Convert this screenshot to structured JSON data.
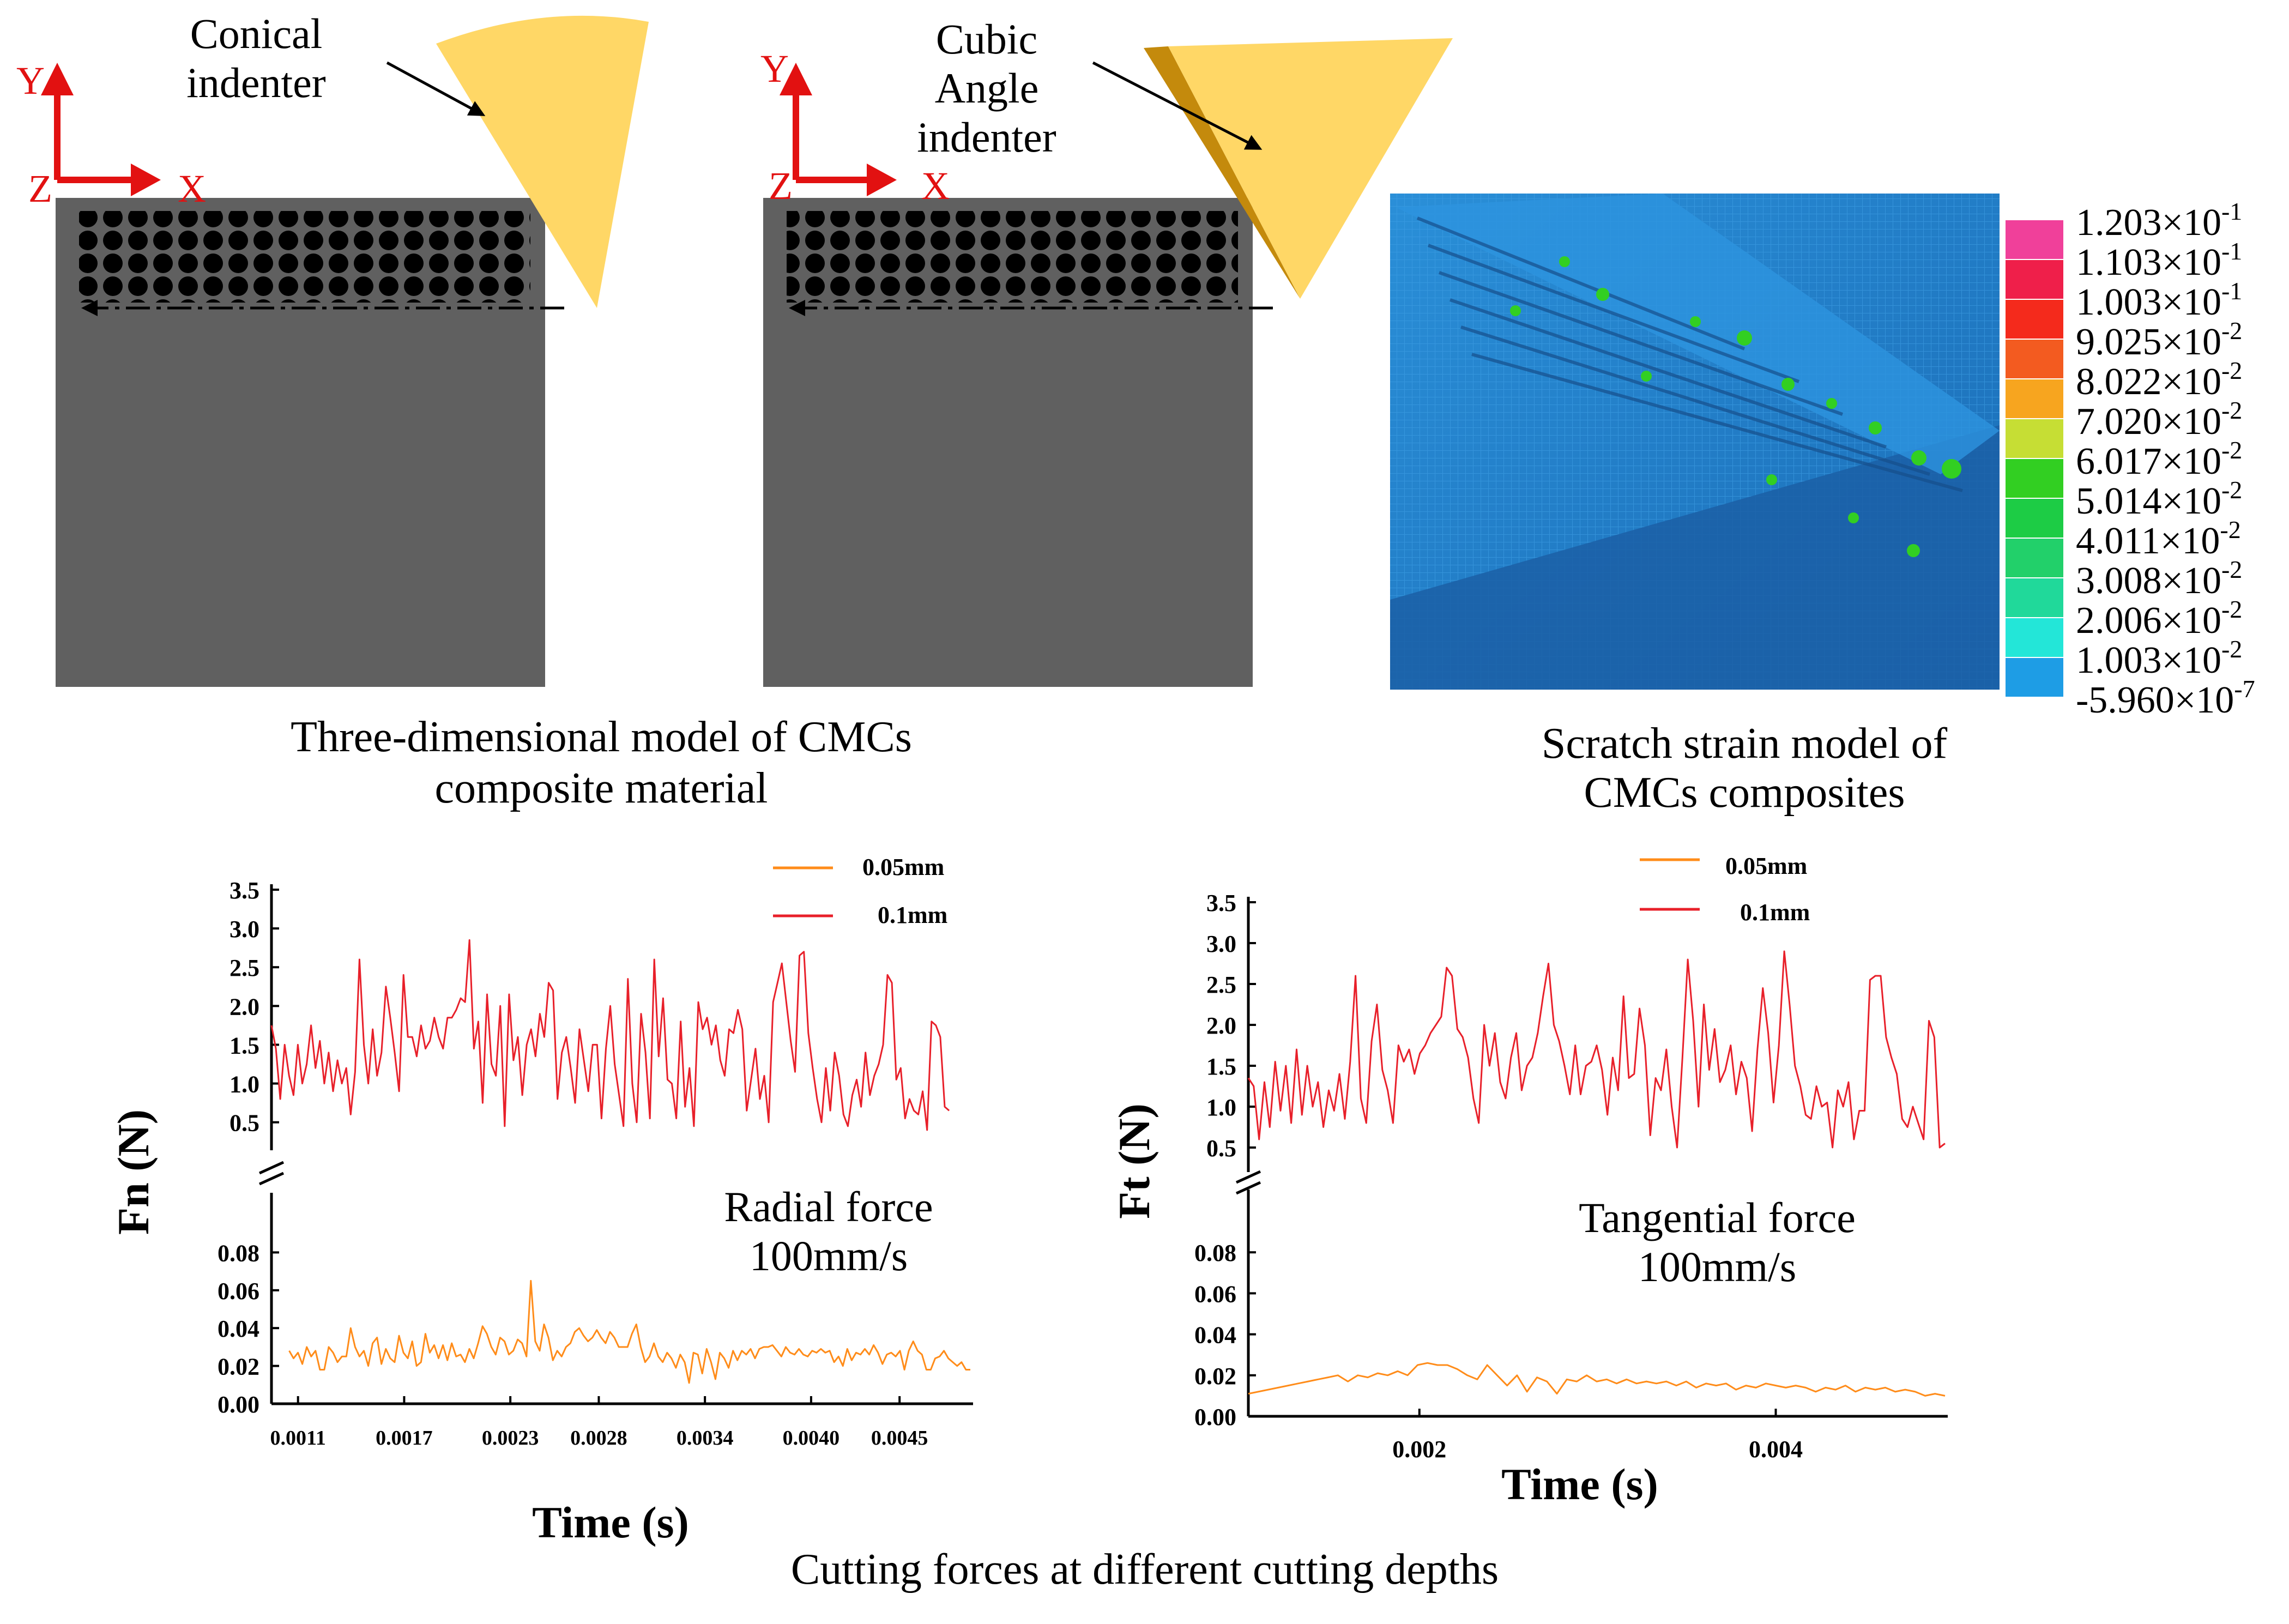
{
  "model_panel_1": {
    "indenter_label_line1": "Conical",
    "indenter_label_line2": "indenter",
    "axis_y": "Y",
    "axis_z": "Z",
    "axis_x": "X"
  },
  "model_panel_2": {
    "indenter_label_line1": "Cubic",
    "indenter_label_line2": "Angle",
    "indenter_label_line3": "indenter",
    "axis_y": "Y",
    "axis_z": "Z",
    "axis_x": "X"
  },
  "caption_model_line1": "Three-dimensional model of CMCs",
  "caption_model_line2": "composite material",
  "caption_strain_line1": "Scratch strain model of",
  "caption_strain_line2": "CMCs composites",
  "colorbar": {
    "labels": [
      {
        "mantissa": "1.203×10",
        "exp": "-1"
      },
      {
        "mantissa": "1.103×10",
        "exp": "-1"
      },
      {
        "mantissa": "1.003×10",
        "exp": "-1"
      },
      {
        "mantissa": "9.025×10",
        "exp": "-2"
      },
      {
        "mantissa": "8.022×10",
        "exp": "-2"
      },
      {
        "mantissa": "7.020×10",
        "exp": "-2"
      },
      {
        "mantissa": "6.017×10",
        "exp": "-2"
      },
      {
        "mantissa": "5.014×10",
        "exp": "-2"
      },
      {
        "mantissa": "4.011×10",
        "exp": "-2"
      },
      {
        "mantissa": "3.008×10",
        "exp": "-2"
      },
      {
        "mantissa": "2.006×10",
        "exp": "-2"
      },
      {
        "mantissa": "1.003×10",
        "exp": "-2"
      },
      {
        "mantissa": "-5.960×10",
        "exp": "-7"
      }
    ],
    "colors": [
      "#f0409a",
      "#ef1f4a",
      "#f42a1c",
      "#f35b20",
      "#f7a51f",
      "#c6de34",
      "#32cf22",
      "#1dcc45",
      "#22d06a",
      "#20d99a",
      "#23e6d8",
      "#1e9de5"
    ]
  },
  "colors": {
    "orange_series": "#ff8c1a",
    "red_series": "#e8202a",
    "indenter": "#ffd766",
    "indenter_dark": "#c48a0c",
    "block": "#606060",
    "axis_red": "#e21111"
  },
  "chart_data": [
    {
      "type": "line",
      "title": "Radial force 100mm/s",
      "annotation_line1": "Radial force",
      "annotation_line2": "100mm/s",
      "xlabel": "Time (s)",
      "ylabel": "Fn (N)",
      "x_ticks": [
        "0.0011",
        "0.0017",
        "0.0023",
        "0.0028",
        "0.0034",
        "0.0040",
        "0.0045"
      ],
      "upper_y_ticks": [
        "0.5",
        "1.0",
        "1.5",
        "2.0",
        "2.5",
        "3.0",
        "3.5"
      ],
      "lower_y_ticks": [
        "0.00",
        "0.02",
        "0.04",
        "0.06",
        "0.08"
      ],
      "upper_ylim": [
        0.35,
        3.5
      ],
      "lower_ylim": [
        0.0,
        0.1
      ],
      "xlim": [
        0.00095,
        0.0049
      ],
      "legend": [
        {
          "name": "0.05mm",
          "color": "#ff8c1a"
        },
        {
          "name": "0.1mm",
          "color": "#e8202a"
        }
      ],
      "series": [
        {
          "name": "0.1mm",
          "axis": "upper",
          "x_start": 0.00095,
          "x_end": 0.00478,
          "values": [
            1.75,
            1.45,
            0.8,
            1.5,
            1.1,
            0.85,
            1.5,
            1.0,
            1.25,
            1.75,
            1.2,
            1.55,
            1.0,
            1.4,
            0.9,
            1.3,
            1.0,
            1.2,
            0.6,
            1.15,
            2.6,
            1.5,
            1.0,
            1.7,
            1.1,
            1.4,
            2.25,
            1.85,
            1.4,
            0.9,
            2.4,
            1.6,
            1.6,
            1.35,
            1.75,
            1.45,
            1.55,
            1.85,
            1.6,
            1.45,
            1.85,
            1.85,
            1.95,
            2.1,
            2.05,
            2.85,
            1.45,
            1.8,
            0.75,
            2.15,
            1.25,
            1.1,
            2.0,
            0.45,
            2.15,
            1.3,
            1.6,
            0.85,
            1.5,
            1.7,
            1.35,
            1.9,
            1.6,
            2.3,
            2.2,
            0.8,
            1.4,
            1.6,
            1.2,
            0.75,
            1.7,
            1.3,
            0.9,
            1.5,
            1.5,
            0.55,
            1.45,
            2.0,
            1.25,
            0.85,
            0.45,
            2.35,
            1.0,
            0.5,
            1.9,
            1.4,
            0.55,
            2.6,
            1.35,
            2.1,
            1.05,
            1.0,
            0.55,
            1.8,
            0.7,
            1.2,
            0.45,
            2.05,
            1.7,
            1.85,
            1.5,
            1.75,
            1.3,
            1.1,
            1.7,
            1.65,
            1.95,
            1.7,
            0.65,
            1.05,
            1.45,
            0.8,
            1.1,
            0.5,
            2.05,
            2.3,
            2.55,
            2.05,
            1.55,
            1.15,
            2.65,
            2.7,
            1.65,
            1.2,
            0.8,
            0.5,
            1.2,
            0.65,
            1.4,
            1.1,
            0.6,
            0.45,
            0.85,
            1.05,
            0.7,
            1.4,
            0.85,
            1.1,
            1.25,
            1.5,
            2.4,
            2.3,
            1.05,
            1.2,
            0.55,
            0.8,
            0.65,
            0.6,
            0.9,
            0.4,
            1.8,
            1.75,
            1.6,
            0.7,
            0.65
          ]
        },
        {
          "name": "0.05mm",
          "axis": "lower",
          "x_start": 0.00105,
          "x_end": 0.0049,
          "values": [
            0.028,
            0.024,
            0.027,
            0.021,
            0.03,
            0.025,
            0.028,
            0.018,
            0.018,
            0.03,
            0.027,
            0.022,
            0.025,
            0.025,
            0.04,
            0.03,
            0.025,
            0.028,
            0.02,
            0.032,
            0.035,
            0.021,
            0.029,
            0.024,
            0.022,
            0.036,
            0.027,
            0.024,
            0.033,
            0.02,
            0.022,
            0.037,
            0.027,
            0.031,
            0.024,
            0.031,
            0.023,
            0.032,
            0.025,
            0.026,
            0.022,
            0.029,
            0.024,
            0.032,
            0.041,
            0.037,
            0.03,
            0.026,
            0.035,
            0.033,
            0.026,
            0.028,
            0.034,
            0.032,
            0.025,
            0.065,
            0.033,
            0.028,
            0.042,
            0.035,
            0.023,
            0.028,
            0.025,
            0.03,
            0.032,
            0.038,
            0.04,
            0.036,
            0.033,
            0.035,
            0.039,
            0.035,
            0.032,
            0.038,
            0.035,
            0.03,
            0.03,
            0.03,
            0.037,
            0.042,
            0.03,
            0.022,
            0.025,
            0.032,
            0.025,
            0.022,
            0.027,
            0.024,
            0.019,
            0.026,
            0.022,
            0.011,
            0.027,
            0.026,
            0.016,
            0.029,
            0.022,
            0.013,
            0.027,
            0.024,
            0.019,
            0.028,
            0.023,
            0.028,
            0.026,
            0.029,
            0.024,
            0.029,
            0.03,
            0.03,
            0.031,
            0.028,
            0.025,
            0.03,
            0.027,
            0.026,
            0.029,
            0.026,
            0.025,
            0.028,
            0.027,
            0.029,
            0.027,
            0.028,
            0.022,
            0.025,
            0.02,
            0.029,
            0.023,
            0.027,
            0.026,
            0.029,
            0.026,
            0.031,
            0.027,
            0.021,
            0.026,
            0.027,
            0.025,
            0.028,
            0.018,
            0.028,
            0.033,
            0.028,
            0.026,
            0.018,
            0.018,
            0.024,
            0.025,
            0.028,
            0.024,
            0.022,
            0.02,
            0.022,
            0.018,
            0.018
          ]
        }
      ]
    },
    {
      "type": "line",
      "title": "Tangential force 100mm/s",
      "annotation_line1": "Tangential force",
      "annotation_line2": "100mm/s",
      "xlabel": "Time (s)",
      "ylabel": "Ft (N)",
      "x_ticks": [
        "0.002",
        "0.004"
      ],
      "upper_y_ticks": [
        "0.5",
        "1.0",
        "1.5",
        "2.0",
        "2.5",
        "3.0",
        "3.5"
      ],
      "lower_y_ticks": [
        "0.00",
        "0.02",
        "0.04",
        "0.06",
        "0.08"
      ],
      "upper_ylim": [
        0.4,
        3.5
      ],
      "lower_ylim": [
        0.0,
        0.1
      ],
      "xlim": [
        0.00104,
        0.00495
      ],
      "legend": [
        {
          "name": "0.05mm",
          "color": "#ff8c1a"
        },
        {
          "name": "0.1mm",
          "color": "#e8202a"
        }
      ],
      "series": [
        {
          "name": "0.1mm",
          "axis": "upper",
          "x_start": 0.00104,
          "x_end": 0.00495,
          "values": [
            1.35,
            1.25,
            0.6,
            1.3,
            0.75,
            1.55,
            0.95,
            1.5,
            0.8,
            1.7,
            0.9,
            1.5,
            1.0,
            1.3,
            0.75,
            1.2,
            0.95,
            1.4,
            0.85,
            1.55,
            2.6,
            1.1,
            0.8,
            1.8,
            2.25,
            1.45,
            1.2,
            0.8,
            1.75,
            1.55,
            1.7,
            1.4,
            1.65,
            1.75,
            1.9,
            2.0,
            2.1,
            2.7,
            2.6,
            1.95,
            1.85,
            1.6,
            1.1,
            0.8,
            2.0,
            1.5,
            1.9,
            1.3,
            1.1,
            1.6,
            1.9,
            1.2,
            1.5,
            1.6,
            1.9,
            2.35,
            2.75,
            2.0,
            1.8,
            1.5,
            1.15,
            1.75,
            1.15,
            1.5,
            1.55,
            1.75,
            1.45,
            0.9,
            1.6,
            1.2,
            2.35,
            1.35,
            1.4,
            2.2,
            1.75,
            0.65,
            1.35,
            1.2,
            1.7,
            1.0,
            0.5,
            1.6,
            2.8,
            2.05,
            1.0,
            2.25,
            1.45,
            1.95,
            1.3,
            1.45,
            1.75,
            1.15,
            1.55,
            1.35,
            0.7,
            1.7,
            2.45,
            1.9,
            1.05,
            1.75,
            2.9,
            2.25,
            1.5,
            1.25,
            0.9,
            0.85,
            1.25,
            1.0,
            1.05,
            0.5,
            1.2,
            1.0,
            1.3,
            0.6,
            0.95,
            0.95,
            2.55,
            2.6,
            2.6,
            1.85,
            1.6,
            1.4,
            0.85,
            0.75,
            1.0,
            0.8,
            0.6,
            2.05,
            1.85,
            0.5,
            0.55
          ]
        },
        {
          "name": "0.05mm",
          "axis": "lower",
          "x_start": 0.00104,
          "x_end": 0.00495,
          "values": [
            0.011,
            0.012,
            0.013,
            0.014,
            0.015,
            0.016,
            0.017,
            0.018,
            0.019,
            0.02,
            0.017,
            0.02,
            0.019,
            0.021,
            0.02,
            0.022,
            0.02,
            0.025,
            0.026,
            0.025,
            0.025,
            0.023,
            0.02,
            0.018,
            0.025,
            0.02,
            0.015,
            0.02,
            0.012,
            0.019,
            0.017,
            0.011,
            0.018,
            0.017,
            0.02,
            0.017,
            0.018,
            0.016,
            0.018,
            0.016,
            0.017,
            0.016,
            0.017,
            0.015,
            0.017,
            0.014,
            0.016,
            0.015,
            0.016,
            0.013,
            0.015,
            0.014,
            0.016,
            0.015,
            0.014,
            0.015,
            0.014,
            0.012,
            0.014,
            0.013,
            0.015,
            0.012,
            0.014,
            0.013,
            0.014,
            0.012,
            0.013,
            0.012,
            0.01,
            0.011,
            0.01
          ]
        }
      ]
    }
  ]
}
